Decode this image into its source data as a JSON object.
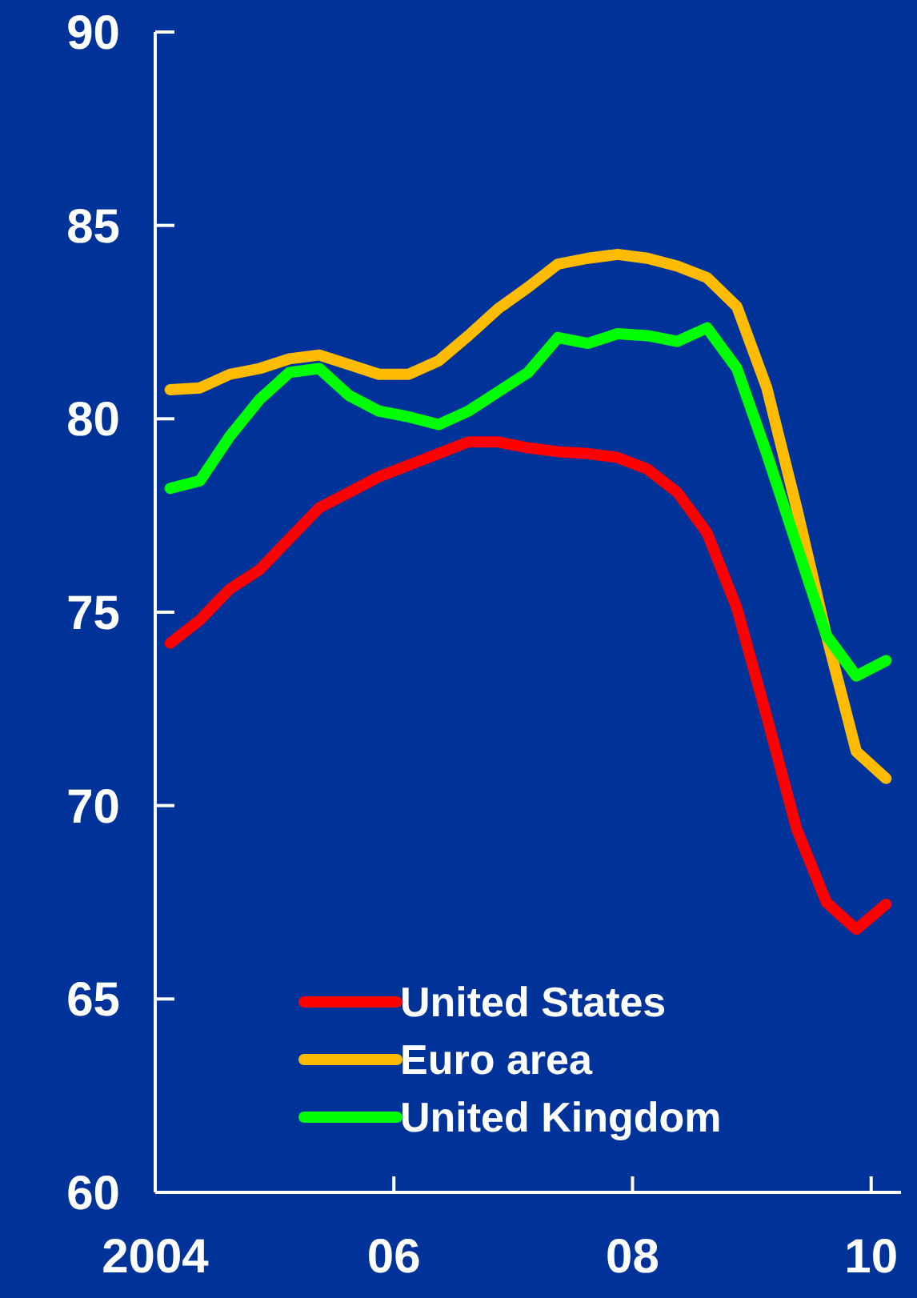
{
  "chart_data": {
    "type": "line",
    "x": [
      2004.125,
      2004.375,
      2004.625,
      2004.875,
      2005.125,
      2005.375,
      2005.625,
      2005.875,
      2006.125,
      2006.375,
      2006.625,
      2006.875,
      2007.125,
      2007.375,
      2007.625,
      2007.875,
      2008.125,
      2008.375,
      2008.625,
      2008.875,
      2009.125,
      2009.375,
      2009.625,
      2009.875,
      2010.125
    ],
    "series": [
      {
        "name": "United States",
        "color": "#ff0000",
        "values": [
          74.2,
          74.8,
          75.6,
          76.1,
          76.9,
          77.7,
          78.1,
          78.5,
          78.8,
          79.1,
          79.4,
          79.4,
          79.25,
          79.15,
          79.1,
          79.0,
          78.7,
          78.1,
          77.05,
          75.1,
          72.3,
          69.4,
          67.5,
          66.8,
          67.45
        ]
      },
      {
        "name": "Euro area",
        "color": "#ffbb00",
        "values": [
          80.75,
          80.8,
          81.15,
          81.3,
          81.55,
          81.65,
          81.4,
          81.15,
          81.15,
          81.5,
          82.15,
          82.85,
          83.4,
          84.0,
          84.15,
          84.25,
          84.15,
          83.95,
          83.65,
          82.9,
          80.8,
          77.7,
          74.4,
          71.4,
          70.7
        ]
      },
      {
        "name": "United Kingdom",
        "color": "#00ff00",
        "values": [
          78.2,
          78.4,
          79.55,
          80.5,
          81.2,
          81.3,
          80.6,
          80.2,
          80.05,
          79.85,
          80.2,
          80.7,
          81.2,
          82.1,
          81.95,
          82.2,
          82.15,
          82.0,
          82.35,
          81.3,
          79.1,
          76.75,
          74.4,
          73.35,
          73.75
        ]
      }
    ],
    "xlim": [
      2004,
      2010.25
    ],
    "xticks": [
      {
        "value": 2004,
        "label": "2004"
      },
      {
        "value": 2006,
        "label": "06"
      },
      {
        "value": 2008,
        "label": "08"
      },
      {
        "value": 2010,
        "label": "10"
      }
    ],
    "ylim": [
      60,
      90
    ],
    "yticks": [
      60,
      65,
      70,
      75,
      80,
      85,
      90
    ],
    "grid": false,
    "legend": "bottom",
    "marker": "none",
    "line_style": "solid"
  }
}
